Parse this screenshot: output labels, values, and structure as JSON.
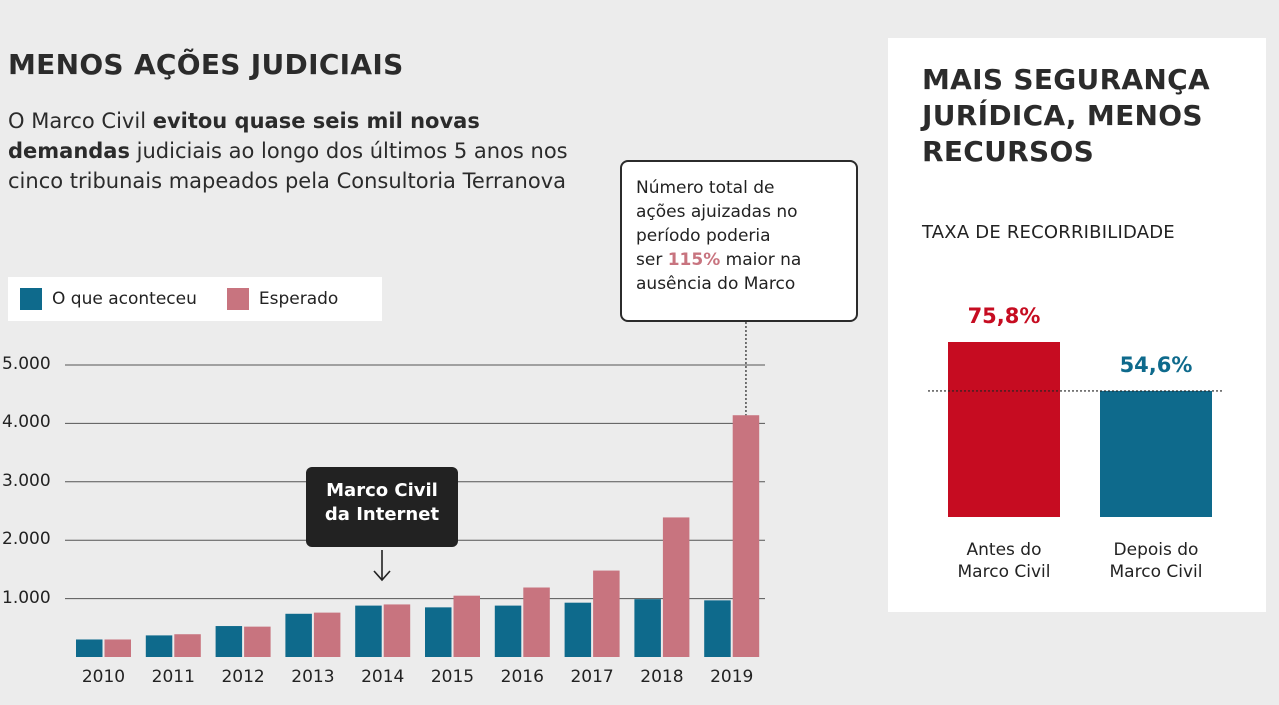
{
  "left_panel": {
    "title": "MENOS AÇÕES JUDICIAIS",
    "lead_part1": "O Marco Civil ",
    "lead_bold": "evitou quase seis mil novas demandas",
    "lead_part2": " judiciais ao longo dos últimos 5 anos nos cinco tribunais mapeados pela Consultoria Terranova",
    "annotation_box": {
      "line1": "Marco Civil",
      "line2": "da Internet"
    },
    "callout": {
      "line1": "Número total de",
      "line2": "ações ajuizadas no",
      "line3": "período poderia",
      "pre": "ser ",
      "highlight": "115%",
      "post": " maior na",
      "line5": "ausência do Marco"
    }
  },
  "right_panel": {
    "title": "MAIS SEGURANÇA JURÍDICA, MENOS RECURSOS",
    "subtitle": "TAXA DE RECORRIBILIDADE"
  },
  "colors": {
    "actual": "#0e6a8c",
    "expected": "#c8747f",
    "before": "#c60c21",
    "after": "#0e6a8c"
  },
  "chart_data": [
    {
      "type": "bar",
      "categories": [
        "2010",
        "2011",
        "2012",
        "2013",
        "2014",
        "2015",
        "2016",
        "2017",
        "2018",
        "2019"
      ],
      "series": [
        {
          "name": "O que aconteceu",
          "values": [
            300,
            370,
            530,
            740,
            880,
            850,
            880,
            930,
            990,
            970
          ]
        },
        {
          "name": "Esperado",
          "values": [
            300,
            390,
            520,
            760,
            900,
            1050,
            1190,
            1480,
            2390,
            4140
          ]
        }
      ],
      "yticks": [
        1000,
        2000,
        3000,
        4000,
        5000
      ],
      "ytick_labels": [
        "1.000",
        "2.000",
        "3.000",
        "4.000",
        "5.000"
      ],
      "ylim": [
        0,
        5000
      ],
      "legend_position": "top-left",
      "grid": true
    },
    {
      "type": "bar",
      "categories": [
        "Antes do Marco Civil",
        "Depois do Marco Civil"
      ],
      "category_lines": [
        [
          "Antes do",
          "Marco Civil"
        ],
        [
          "Depois do",
          "Marco Civil"
        ]
      ],
      "values": [
        75.8,
        54.6
      ],
      "value_labels": [
        "75,8%",
        "54,6%"
      ],
      "unit": "%"
    }
  ]
}
